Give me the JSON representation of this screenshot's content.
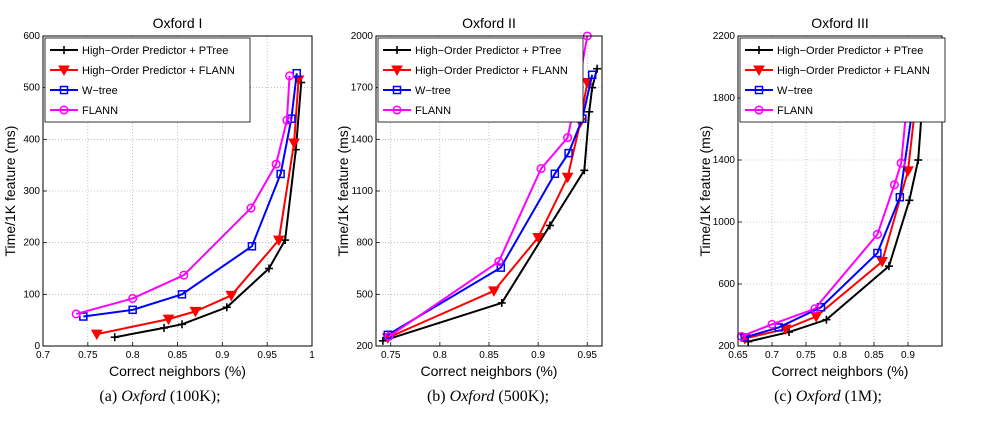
{
  "chart_data": [
    {
      "type": "line",
      "title": "Oxford I",
      "xlabel": "Correct neighbors (%)",
      "ylabel": "Time/1K feature (ms)",
      "xlim": [
        0.7,
        1.0
      ],
      "ylim": [
        0,
        600
      ],
      "xticks": [
        0.7,
        0.75,
        0.8,
        0.85,
        0.9,
        0.95,
        1.0
      ],
      "xtick_labels": [
        "0.7",
        "0.75",
        "0.8",
        "0.85",
        "0.9",
        "0.95",
        "1"
      ],
      "yticks": [
        0,
        100,
        200,
        300,
        400,
        500,
        600
      ],
      "ytick_labels": [
        "0",
        "100",
        "200",
        "300",
        "400",
        "500",
        "600"
      ],
      "grid": true,
      "legend": "top-left",
      "series": [
        {
          "name": "High−Order Predictor + PTree",
          "color": "#000000",
          "marker": "plus",
          "x": [
            0.78,
            0.835,
            0.855,
            0.905,
            0.952,
            0.97,
            0.982,
            0.988
          ],
          "y": [
            17,
            35,
            42,
            75,
            150,
            205,
            380,
            510
          ]
        },
        {
          "name": "High−Order Predictor + FLANN",
          "color": "#ff0000",
          "marker": "triangle-down",
          "x": [
            0.76,
            0.84,
            0.87,
            0.91,
            0.963,
            0.98,
            0.985
          ],
          "y": [
            23,
            52,
            67,
            98,
            205,
            393,
            515
          ]
        },
        {
          "name": "W−tree",
          "color": "#0000ff",
          "marker": "square",
          "x": [
            0.745,
            0.8,
            0.855,
            0.933,
            0.965,
            0.977,
            0.983
          ],
          "y": [
            57,
            70,
            100,
            193,
            333,
            440,
            528
          ]
        },
        {
          "name": "FLANN",
          "color": "#ff00ff",
          "marker": "circle",
          "x": [
            0.737,
            0.8,
            0.857,
            0.932,
            0.96,
            0.972,
            0.975
          ],
          "y": [
            62,
            92,
            137,
            267,
            352,
            437,
            523
          ]
        }
      ]
    },
    {
      "type": "line",
      "title": "Oxford II",
      "xlabel": "Correct neighbors (%)",
      "ylabel": "Time/1K feature (ms)",
      "xlim": [
        0.735,
        0.965
      ],
      "ylim": [
        200,
        2000
      ],
      "xticks": [
        0.75,
        0.8,
        0.85,
        0.9,
        0.95
      ],
      "xtick_labels": [
        "0.75",
        "0.8",
        "0.85",
        "0.9",
        "0.95"
      ],
      "yticks": [
        200,
        500,
        800,
        1100,
        1400,
        1700,
        2000
      ],
      "ytick_labels": [
        "200",
        "500",
        "800",
        "1100",
        "1400",
        "1700",
        "2000"
      ],
      "grid": true,
      "legend": "top-left",
      "series": [
        {
          "name": "High−Order Predictor + PTree",
          "color": "#000000",
          "marker": "plus",
          "x": [
            0.742,
            0.863,
            0.912,
            0.947,
            0.952,
            0.955,
            0.96
          ],
          "y": [
            230,
            450,
            900,
            1220,
            1560,
            1700,
            1810
          ]
        },
        {
          "name": "High−Order Predictor + FLANN",
          "color": "#ff0000",
          "marker": "triangle-down",
          "x": [
            0.747,
            0.855,
            0.9,
            0.93,
            0.943,
            0.95
          ],
          "y": [
            248,
            520,
            830,
            1180,
            1500,
            1730
          ]
        },
        {
          "name": "W−tree",
          "color": "#0000ff",
          "marker": "square",
          "x": [
            0.747,
            0.862,
            0.917,
            0.931,
            0.945,
            0.955
          ],
          "y": [
            265,
            655,
            1200,
            1320,
            1520,
            1775
          ]
        },
        {
          "name": "FLANN",
          "color": "#ff00ff",
          "marker": "circle",
          "x": [
            0.748,
            0.86,
            0.903,
            0.93,
            0.941,
            0.95
          ],
          "y": [
            255,
            690,
            1230,
            1410,
            1710,
            2000
          ]
        }
      ]
    },
    {
      "type": "line",
      "title": "Oxford III",
      "xlabel": "Correct neighbors (%)",
      "ylabel": "Time/1K feature (ms)",
      "xlim": [
        0.65,
        0.95
      ],
      "ylim": [
        200,
        2200
      ],
      "xticks": [
        0.65,
        0.7,
        0.75,
        0.8,
        0.85,
        0.9
      ],
      "xtick_labels": [
        "0.65",
        "0.7",
        "0.75",
        "0.8",
        "0.85",
        "0.9"
      ],
      "yticks": [
        200,
        600,
        1000,
        1400,
        1800,
        2200
      ],
      "ytick_labels": [
        "200",
        "600",
        "1000",
        "1400",
        "1800",
        "2200"
      ],
      "grid": true,
      "legend": "top-left",
      "series": [
        {
          "name": "High−Order Predictor + PTree",
          "color": "#000000",
          "marker": "plus",
          "x": [
            0.665,
            0.725,
            0.78,
            0.872,
            0.902,
            0.915,
            0.925
          ],
          "y": [
            228,
            290,
            370,
            715,
            1140,
            1400,
            2000
          ]
        },
        {
          "name": "High−Order Predictor + FLANN",
          "color": "#ff0000",
          "marker": "triangle-down",
          "x": [
            0.66,
            0.72,
            0.765,
            0.862,
            0.9,
            0.92
          ],
          "y": [
            248,
            310,
            390,
            745,
            1330,
            2110
          ]
        },
        {
          "name": "W−tree",
          "color": "#0000ff",
          "marker": "square",
          "x": [
            0.66,
            0.71,
            0.772,
            0.855,
            0.888,
            0.918
          ],
          "y": [
            255,
            320,
            450,
            800,
            1160,
            2080
          ]
        },
        {
          "name": "FLANN",
          "color": "#ff00ff",
          "marker": "circle",
          "x": [
            0.655,
            0.7,
            0.763,
            0.855,
            0.88,
            0.89,
            0.905
          ],
          "y": [
            262,
            340,
            440,
            920,
            1240,
            1380,
            2060
          ]
        }
      ]
    }
  ],
  "captions": [
    {
      "label": "(a)",
      "name": "Oxford",
      "size": "(100K);"
    },
    {
      "label": "(b)",
      "name": "Oxford",
      "size": "(500K);"
    },
    {
      "label": "(c)",
      "name": "Oxford",
      "size": "(1M);"
    }
  ]
}
